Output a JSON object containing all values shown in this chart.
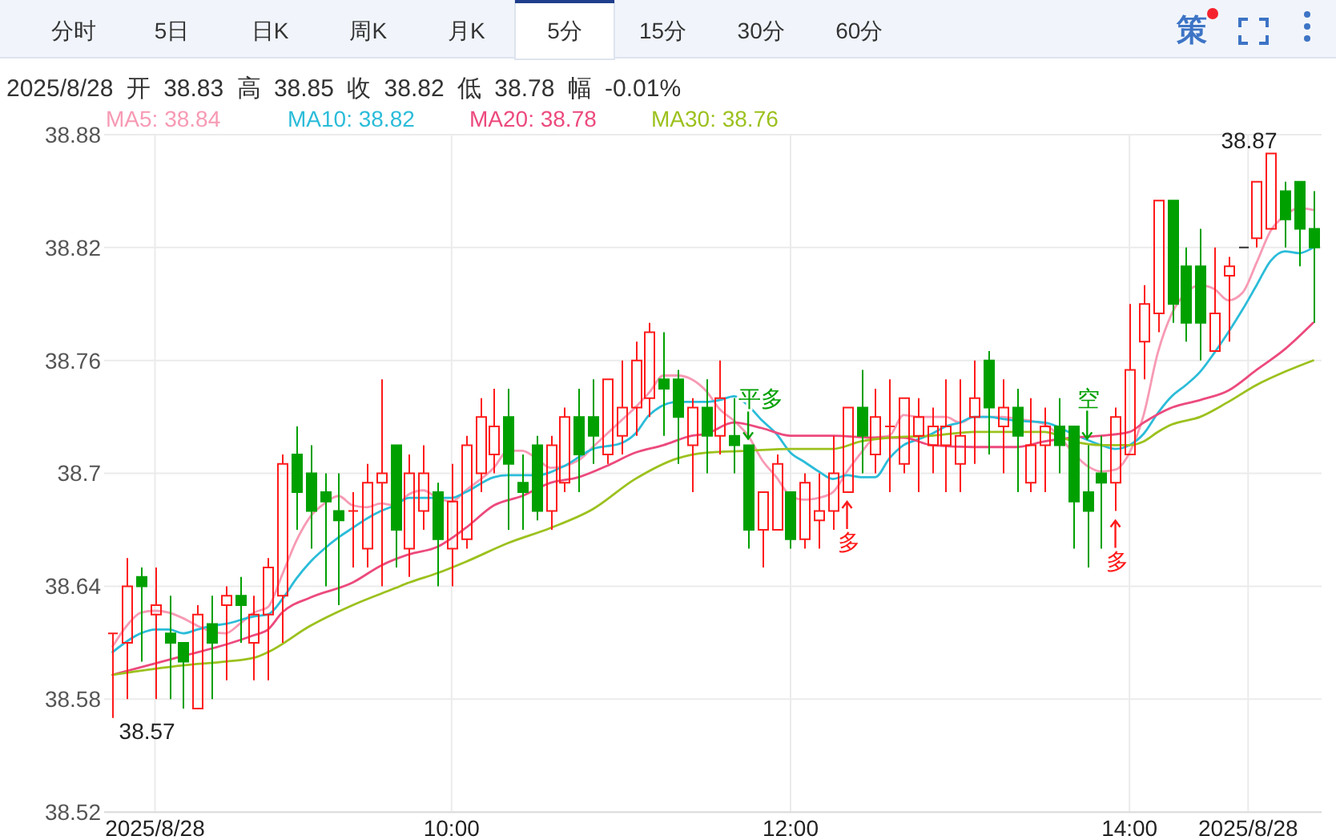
{
  "chart_data": {
    "type": "candlestick",
    "subtitle": "2025/8/28 开 38.83 高 38.85 收 38.82 低 38.78 幅 -0.01%",
    "x": [
      "2025-08-28T08:00",
      "2025-08-28T08:05",
      "2025-08-28T08:10",
      "2025-08-28T08:15",
      "2025-08-28T08:20",
      "2025-08-28T08:25",
      "2025-08-28T08:30",
      "2025-08-28T08:35",
      "2025-08-28T08:40",
      "2025-08-28T08:45",
      "2025-08-28T08:50",
      "2025-08-28T08:55",
      "2025-08-28T09:00",
      "2025-08-28T09:05",
      "2025-08-28T09:10",
      "2025-08-28T09:15",
      "2025-08-28T09:20",
      "2025-08-28T09:25",
      "2025-08-28T09:30",
      "2025-08-28T09:35",
      "2025-08-28T09:40",
      "2025-08-28T09:45",
      "2025-08-28T09:50",
      "2025-08-28T09:55",
      "2025-08-28T10:00",
      "2025-08-28T10:05",
      "2025-08-28T10:10",
      "2025-08-28T10:15",
      "2025-08-28T10:20",
      "2025-08-28T10:25",
      "2025-08-28T10:30",
      "2025-08-28T10:35",
      "2025-08-28T10:40",
      "2025-08-28T10:45",
      "2025-08-28T10:50",
      "2025-08-28T10:55",
      "2025-08-28T11:00",
      "2025-08-28T11:05",
      "2025-08-28T11:10",
      "2025-08-28T11:15",
      "2025-08-28T11:20",
      "2025-08-28T11:25",
      "2025-08-28T11:30",
      "2025-08-28T11:35",
      "2025-08-28T11:40",
      "2025-08-28T11:45",
      "2025-08-28T11:50",
      "2025-08-28T11:55",
      "2025-08-28T12:00",
      "2025-08-28T12:05",
      "2025-08-28T12:10",
      "2025-08-28T12:15",
      "2025-08-28T12:20",
      "2025-08-28T12:25",
      "2025-08-28T12:30",
      "2025-08-28T12:35",
      "2025-08-28T12:40",
      "2025-08-28T12:45",
      "2025-08-28T12:50",
      "2025-08-28T12:55",
      "2025-08-28T13:00",
      "2025-08-28T13:05",
      "2025-08-28T13:10",
      "2025-08-28T13:15",
      "2025-08-28T13:20",
      "2025-08-28T13:25",
      "2025-08-28T13:30",
      "2025-08-28T13:35",
      "2025-08-28T13:40",
      "2025-08-28T13:45",
      "2025-08-28T13:50",
      "2025-08-28T13:55",
      "2025-08-28T14:00",
      "2025-08-28T14:05",
      "2025-08-28T14:10",
      "2025-08-28T14:15",
      "2025-08-28T14:20",
      "2025-08-28T14:25",
      "2025-08-28T14:30",
      "2025-08-28T14:35",
      "2025-08-28T14:40",
      "2025-08-28T14:45",
      "2025-08-28T14:50",
      "2025-08-28T14:55",
      "2025-08-28T15:00",
      "2025-08-28T15:05"
    ],
    "ohlc": [
      [
        38.615,
        38.615,
        38.57,
        38.615
      ],
      [
        38.61,
        38.655,
        38.58,
        38.64
      ],
      [
        38.645,
        38.65,
        38.6,
        38.64
      ],
      [
        38.625,
        38.65,
        38.58,
        38.63
      ],
      [
        38.615,
        38.635,
        38.58,
        38.61
      ],
      [
        38.61,
        38.61,
        38.575,
        38.6
      ],
      [
        38.575,
        38.63,
        38.575,
        38.625
      ],
      [
        38.62,
        38.635,
        38.58,
        38.61
      ],
      [
        38.63,
        38.64,
        38.59,
        38.635
      ],
      [
        38.635,
        38.645,
        38.61,
        38.63
      ],
      [
        38.61,
        38.635,
        38.59,
        38.625
      ],
      [
        38.625,
        38.655,
        38.59,
        38.65
      ],
      [
        38.635,
        38.71,
        38.61,
        38.705
      ],
      [
        38.71,
        38.725,
        38.67,
        38.69
      ],
      [
        38.7,
        38.715,
        38.66,
        38.68
      ],
      [
        38.69,
        38.7,
        38.64,
        38.685
      ],
      [
        38.68,
        38.7,
        38.63,
        38.675
      ],
      [
        38.68,
        38.69,
        38.65,
        38.68
      ],
      [
        38.66,
        38.705,
        38.65,
        38.695
      ],
      [
        38.695,
        38.75,
        38.64,
        38.7
      ],
      [
        38.715,
        38.715,
        38.65,
        38.67
      ],
      [
        38.66,
        38.71,
        38.645,
        38.7
      ],
      [
        38.68,
        38.715,
        38.67,
        38.7
      ],
      [
        38.69,
        38.695,
        38.64,
        38.665
      ],
      [
        38.66,
        38.705,
        38.64,
        38.685
      ],
      [
        38.665,
        38.72,
        38.66,
        38.715
      ],
      [
        38.7,
        38.74,
        38.69,
        38.73
      ],
      [
        38.71,
        38.745,
        38.7,
        38.725
      ],
      [
        38.73,
        38.745,
        38.67,
        38.705
      ],
      [
        38.695,
        38.71,
        38.67,
        38.69
      ],
      [
        38.715,
        38.72,
        38.675,
        38.68
      ],
      [
        38.68,
        38.72,
        38.67,
        38.715
      ],
      [
        38.695,
        38.735,
        38.69,
        38.73
      ],
      [
        38.73,
        38.745,
        38.69,
        38.71
      ],
      [
        38.73,
        38.75,
        38.705,
        38.72
      ],
      [
        38.71,
        38.75,
        38.705,
        38.75
      ],
      [
        38.72,
        38.76,
        38.71,
        38.735
      ],
      [
        38.735,
        38.77,
        38.72,
        38.76
      ],
      [
        38.74,
        38.78,
        38.73,
        38.775
      ],
      [
        38.75,
        38.775,
        38.72,
        38.745
      ],
      [
        38.75,
        38.755,
        38.705,
        38.73
      ],
      [
        38.715,
        38.74,
        38.69,
        38.735
      ],
      [
        38.735,
        38.75,
        38.7,
        38.72
      ],
      [
        38.72,
        38.76,
        38.71,
        38.74
      ],
      [
        38.72,
        38.74,
        38.7,
        38.715
      ],
      [
        38.715,
        38.715,
        38.66,
        38.67
      ],
      [
        38.67,
        38.69,
        38.65,
        38.69
      ],
      [
        38.67,
        38.71,
        38.67,
        38.705
      ],
      [
        38.69,
        38.69,
        38.66,
        38.665
      ],
      [
        38.665,
        38.7,
        38.66,
        38.695
      ],
      [
        38.675,
        38.7,
        38.66,
        38.68
      ],
      [
        38.68,
        38.72,
        38.67,
        38.7
      ],
      [
        38.69,
        38.735,
        38.69,
        38.735
      ],
      [
        38.735,
        38.755,
        38.7,
        38.72
      ],
      [
        38.71,
        38.745,
        38.7,
        38.73
      ],
      [
        38.725,
        38.75,
        38.69,
        38.725
      ],
      [
        38.705,
        38.74,
        38.7,
        38.74
      ],
      [
        38.72,
        38.74,
        38.69,
        38.73
      ],
      [
        38.715,
        38.735,
        38.7,
        38.725
      ],
      [
        38.715,
        38.75,
        38.69,
        38.725
      ],
      [
        38.705,
        38.75,
        38.69,
        38.72
      ],
      [
        38.73,
        38.76,
        38.705,
        38.74
      ],
      [
        38.76,
        38.765,
        38.71,
        38.735
      ],
      [
        38.725,
        38.75,
        38.7,
        38.735
      ],
      [
        38.735,
        38.745,
        38.69,
        38.72
      ],
      [
        38.695,
        38.74,
        38.69,
        38.715
      ],
      [
        38.715,
        38.735,
        38.69,
        38.725
      ],
      [
        38.725,
        38.74,
        38.7,
        38.715
      ],
      [
        38.725,
        38.725,
        38.66,
        38.685
      ],
      [
        38.69,
        38.715,
        38.65,
        38.68
      ],
      [
        38.7,
        38.72,
        38.66,
        38.695
      ],
      [
        38.695,
        38.735,
        38.68,
        38.73
      ],
      [
        38.71,
        38.79,
        38.71,
        38.755
      ],
      [
        38.77,
        38.8,
        38.75,
        38.79
      ],
      [
        38.785,
        38.845,
        38.775,
        38.845
      ],
      [
        38.845,
        38.845,
        38.78,
        38.79
      ],
      [
        38.81,
        38.82,
        38.77,
        38.78
      ],
      [
        38.81,
        38.83,
        38.76,
        38.78
      ],
      [
        38.765,
        38.82,
        38.765,
        38.785
      ],
      [
        38.805,
        38.815,
        38.77,
        38.81
      ],
      [
        38.82,
        38.82,
        38.82,
        38.82
      ],
      [
        38.825,
        38.855,
        38.82,
        38.855
      ],
      [
        38.83,
        38.87,
        38.83,
        38.87
      ],
      [
        38.85,
        38.855,
        38.82,
        38.835
      ],
      [
        38.855,
        38.855,
        38.81,
        38.83
      ],
      [
        38.83,
        38.85,
        38.78,
        38.82
      ]
    ],
    "colors": [
      "#ff1a1a",
      "#ff1a1a",
      "#00a000",
      "#ff1a1a",
      "#00a000",
      "#00a000",
      "#ff1a1a",
      "#00a000",
      "#ff1a1a",
      "#00a000",
      "#ff1a1a",
      "#ff1a1a",
      "#ff1a1a",
      "#00a000",
      "#00a000",
      "#00a000",
      "#00a000",
      "#ff1a1a",
      "#ff1a1a",
      "#ff1a1a",
      "#00a000",
      "#ff1a1a",
      "#ff1a1a",
      "#00a000",
      "#ff1a1a",
      "#ff1a1a",
      "#ff1a1a",
      "#ff1a1a",
      "#00a000",
      "#00a000",
      "#00a000",
      "#ff1a1a",
      "#ff1a1a",
      "#00a000",
      "#00a000",
      "#ff1a1a",
      "#ff1a1a",
      "#ff1a1a",
      "#ff1a1a",
      "#00a000",
      "#00a000",
      "#ff1a1a",
      "#00a000",
      "#ff1a1a",
      "#00a000",
      "#00a000",
      "#ff1a1a",
      "#ff1a1a",
      "#00a000",
      "#ff1a1a",
      "#ff1a1a",
      "#ff1a1a",
      "#ff1a1a",
      "#00a000",
      "#ff1a1a",
      "#ff1a1a",
      "#ff1a1a",
      "#ff1a1a",
      "#ff1a1a",
      "#ff1a1a",
      "#ff1a1a",
      "#ff1a1a",
      "#00a000",
      "#ff1a1a",
      "#00a000",
      "#ff1a1a",
      "#ff1a1a",
      "#00a000",
      "#00a000",
      "#00a000",
      "#00a000",
      "#ff1a1a",
      "#ff1a1a",
      "#ff1a1a",
      "#ff1a1a",
      "#00a000",
      "#00a000",
      "#00a000",
      "#ff1a1a",
      "#ff1a1a",
      "#333333",
      "#ff1a1a",
      "#ff1a1a",
      "#00a000",
      "#00a000",
      "#00a000"
    ],
    "series": [
      {
        "type": "line",
        "name": "MA5: 38.84",
        "color": "#f79ab4",
        "x": [
          "2025-08-28T08:00",
          "2025-08-28T08:05",
          "2025-08-28T08:10",
          "2025-08-28T08:15",
          "2025-08-28T08:20",
          "2025-08-28T08:25",
          "2025-08-28T08:30",
          "2025-08-28T08:35",
          "2025-08-28T08:40",
          "2025-08-28T08:45",
          "2025-08-28T08:50",
          "2025-08-28T08:55",
          "2025-08-28T09:00",
          "2025-08-28T09:05",
          "2025-08-28T09:10",
          "2025-08-28T09:15",
          "2025-08-28T09:20",
          "2025-08-28T09:25",
          "2025-08-28T09:30",
          "2025-08-28T09:35",
          "2025-08-28T09:40",
          "2025-08-28T09:45",
          "2025-08-28T09:50",
          "2025-08-28T09:55",
          "2025-08-28T10:00",
          "2025-08-28T10:05",
          "2025-08-28T10:15",
          "2025-08-28T10:20",
          "2025-08-28T10:25",
          "2025-08-28T10:30",
          "2025-08-28T10:35",
          "2025-08-28T10:45",
          "2025-08-28T10:50",
          "2025-08-28T10:55",
          "2025-08-28T11:00",
          "2025-08-28T11:05",
          "2025-08-28T11:10",
          "2025-08-28T11:15",
          "2025-08-28T11:20",
          "2025-08-28T11:25",
          "2025-08-28T11:30",
          "2025-08-28T11:35",
          "2025-08-28T11:40",
          "2025-08-28T11:45",
          "2025-08-28T11:50",
          "2025-08-28T11:55",
          "2025-08-28T12:00",
          "2025-08-28T12:05",
          "2025-08-28T12:10",
          "2025-08-28T12:15",
          "2025-08-28T12:20",
          "2025-08-28T12:25",
          "2025-08-28T12:30",
          "2025-08-28T12:35",
          "2025-08-28T12:40",
          "2025-08-28T12:45",
          "2025-08-28T12:50",
          "2025-08-28T12:55",
          "2025-08-28T13:00",
          "2025-08-28T13:05",
          "2025-08-28T13:10",
          "2025-08-28T13:15",
          "2025-08-28T13:20",
          "2025-08-28T13:30",
          "2025-08-28T13:35",
          "2025-08-28T13:40",
          "2025-08-28T13:45",
          "2025-08-28T13:50",
          "2025-08-28T13:55",
          "2025-08-28T14:00",
          "2025-08-28T14:05",
          "2025-08-28T14:10",
          "2025-08-28T14:15",
          "2025-08-28T14:20",
          "2025-08-28T14:25",
          "2025-08-28T14:30",
          "2025-08-28T14:35",
          "2025-08-28T14:40",
          "2025-08-28T14:45",
          "2025-08-28T14:50",
          "2025-08-28T14:55",
          "2025-08-28T15:00",
          "2025-08-28T15:05"
        ],
        "values": [
          38.608,
          38.619,
          38.626,
          38.627,
          38.626,
          38.623,
          38.619,
          38.616,
          38.615,
          38.62,
          38.626,
          38.629,
          38.646,
          38.664,
          38.677,
          38.684,
          38.688,
          38.683,
          38.682,
          38.684,
          38.683,
          38.689,
          38.691,
          38.687,
          38.685,
          38.691,
          38.703,
          38.712,
          38.712,
          38.708,
          38.703,
          38.707,
          38.714,
          38.721,
          38.728,
          38.735,
          38.743,
          38.752,
          38.752,
          38.75,
          38.744,
          38.734,
          38.728,
          38.72,
          38.707,
          38.698,
          38.688,
          38.686,
          38.687,
          38.69,
          38.701,
          38.711,
          38.719,
          38.72,
          38.731,
          38.73,
          38.73,
          38.73,
          38.727,
          38.73,
          38.73,
          38.73,
          38.729,
          38.726,
          38.72,
          38.711,
          38.704,
          38.701,
          38.702,
          38.711,
          38.731,
          38.764,
          38.785,
          38.796,
          38.8,
          38.798,
          38.792,
          38.796,
          38.812,
          38.829,
          38.837,
          38.841,
          38.84
        ]
      },
      {
        "type": "line",
        "name": "MA10: 38.82",
        "color": "#2bbcd9",
        "x": [
          "2025-08-28T08:00",
          "2025-08-28T08:10",
          "2025-08-28T08:15",
          "2025-08-28T08:20",
          "2025-08-28T08:25",
          "2025-08-28T08:30",
          "2025-08-28T08:35",
          "2025-08-28T08:40",
          "2025-08-28T08:50",
          "2025-08-28T08:55",
          "2025-08-28T09:00",
          "2025-08-28T09:05",
          "2025-08-28T09:10",
          "2025-08-28T09:15",
          "2025-08-28T09:20",
          "2025-08-28T09:25",
          "2025-08-28T09:30",
          "2025-08-28T09:35",
          "2025-08-28T09:40",
          "2025-08-28T09:45",
          "2025-08-28T09:50",
          "2025-08-28T10:00",
          "2025-08-28T10:05",
          "2025-08-28T10:15",
          "2025-08-28T10:20",
          "2025-08-28T10:30",
          "2025-08-28T10:40",
          "2025-08-28T10:50",
          "2025-08-28T11:00",
          "2025-08-28T11:05",
          "2025-08-28T11:10",
          "2025-08-28T11:20",
          "2025-08-28T11:30",
          "2025-08-28T11:35",
          "2025-08-28T11:40",
          "2025-08-28T11:45",
          "2025-08-28T11:50",
          "2025-08-28T11:55",
          "2025-08-28T12:00",
          "2025-08-28T12:05",
          "2025-08-28T12:10",
          "2025-08-28T12:15",
          "2025-08-28T12:20",
          "2025-08-28T12:25",
          "2025-08-28T12:30",
          "2025-08-28T12:35",
          "2025-08-28T12:40",
          "2025-08-28T12:45",
          "2025-08-28T12:50",
          "2025-08-28T12:55",
          "2025-08-28T13:00",
          "2025-08-28T13:05",
          "2025-08-28T13:10",
          "2025-08-28T13:15",
          "2025-08-28T13:20",
          "2025-08-28T13:30",
          "2025-08-28T13:40",
          "2025-08-28T13:50",
          "2025-08-28T13:55",
          "2025-08-28T14:00",
          "2025-08-28T14:05",
          "2025-08-28T14:10",
          "2025-08-28T14:15",
          "2025-08-28T14:20",
          "2025-08-28T14:25",
          "2025-08-28T14:30",
          "2025-08-28T14:35",
          "2025-08-28T14:40",
          "2025-08-28T14:45",
          "2025-08-28T14:50",
          "2025-08-28T14:55",
          "2025-08-28T15:00",
          "2025-08-28T15:05"
        ],
        "values": [
          38.605,
          38.615,
          38.617,
          38.617,
          38.615,
          38.617,
          38.619,
          38.62,
          38.624,
          38.625,
          38.633,
          38.644,
          38.653,
          38.66,
          38.666,
          38.671,
          38.676,
          38.68,
          38.683,
          38.687,
          38.687,
          38.687,
          38.69,
          38.698,
          38.699,
          38.699,
          38.704,
          38.713,
          38.716,
          38.721,
          38.731,
          38.738,
          38.738,
          38.739,
          38.741,
          38.736,
          38.728,
          38.721,
          38.711,
          38.706,
          38.701,
          38.697,
          38.699,
          38.698,
          38.698,
          38.708,
          38.715,
          38.718,
          38.721,
          38.725,
          38.727,
          38.73,
          38.73,
          38.729,
          38.728,
          38.727,
          38.721,
          38.715,
          38.713,
          38.715,
          38.721,
          38.732,
          38.741,
          38.747,
          38.754,
          38.764,
          38.775,
          38.787,
          38.8,
          38.813,
          38.818,
          38.817,
          38.82
        ]
      },
      {
        "type": "line",
        "name": "MA20: 38.78",
        "color": "#ec4a7d",
        "x": [
          "2025-08-28T08:00",
          "2025-08-28T08:25",
          "2025-08-28T08:40",
          "2025-08-28T08:50",
          "2025-08-28T08:55",
          "2025-08-28T09:00",
          "2025-08-28T09:10",
          "2025-08-28T09:25",
          "2025-08-28T09:35",
          "2025-08-28T09:45",
          "2025-08-28T09:55",
          "2025-08-28T10:05",
          "2025-08-28T10:15",
          "2025-08-28T10:25",
          "2025-08-28T10:35",
          "2025-08-28T10:45",
          "2025-08-28T10:55",
          "2025-08-28T11:05",
          "2025-08-28T11:15",
          "2025-08-28T11:25",
          "2025-08-28T11:30",
          "2025-08-28T11:40",
          "2025-08-28T11:50",
          "2025-08-28T12:00",
          "2025-08-28T12:15",
          "2025-08-28T12:30",
          "2025-08-28T12:40",
          "2025-08-28T12:50",
          "2025-08-28T13:05",
          "2025-08-28T13:20",
          "2025-08-28T13:30",
          "2025-08-28T13:40",
          "2025-08-28T13:50",
          "2025-08-28T14:00",
          "2025-08-28T14:05",
          "2025-08-28T14:15",
          "2025-08-28T14:25",
          "2025-08-28T14:35",
          "2025-08-28T14:45",
          "2025-08-28T14:55",
          "2025-08-28T15:05"
        ],
        "values": [
          38.593,
          38.603,
          38.609,
          38.614,
          38.617,
          38.626,
          38.634,
          38.642,
          38.651,
          38.657,
          38.661,
          38.671,
          38.683,
          38.688,
          38.695,
          38.698,
          38.704,
          38.711,
          38.715,
          38.72,
          38.721,
          38.727,
          38.724,
          38.72,
          38.72,
          38.719,
          38.719,
          38.715,
          38.714,
          38.714,
          38.717,
          38.719,
          38.72,
          38.722,
          38.727,
          38.735,
          38.739,
          38.744,
          38.755,
          38.766,
          38.78
        ]
      },
      {
        "type": "line",
        "name": "MA30: 38.76",
        "color": "#9cc11e",
        "x": [
          "2025-08-28T08:00",
          "2025-08-28T08:25",
          "2025-08-28T08:40",
          "2025-08-28T08:50",
          "2025-08-28T08:55",
          "2025-08-28T09:10",
          "2025-08-28T09:25",
          "2025-08-28T09:40",
          "2025-08-28T09:45",
          "2025-08-28T09:55",
          "2025-08-28T10:05",
          "2025-08-28T10:20",
          "2025-08-28T10:35",
          "2025-08-28T10:50",
          "2025-08-28T11:05",
          "2025-08-28T11:20",
          "2025-08-28T11:30",
          "2025-08-28T11:45",
          "2025-08-28T12:00",
          "2025-08-28T12:15",
          "2025-08-28T12:25",
          "2025-08-28T12:35",
          "2025-08-28T12:50",
          "2025-08-28T13:05",
          "2025-08-28T13:20",
          "2025-08-28T13:30",
          "2025-08-28T13:40",
          "2025-08-28T13:50",
          "2025-08-28T14:00",
          "2025-08-28T14:05",
          "2025-08-28T14:10",
          "2025-08-28T14:15",
          "2025-08-28T14:25",
          "2025-08-28T14:35",
          "2025-08-28T14:45",
          "2025-08-28T14:55",
          "2025-08-28T15:05"
        ],
        "values": [
          38.593,
          38.598,
          38.6,
          38.602,
          38.605,
          38.619,
          38.63,
          38.639,
          38.642,
          38.647,
          38.653,
          38.663,
          38.671,
          38.681,
          38.697,
          38.708,
          38.711,
          38.712,
          38.713,
          38.713,
          38.717,
          38.719,
          38.72,
          38.722,
          38.722,
          38.722,
          38.717,
          38.715,
          38.715,
          38.717,
          38.722,
          38.726,
          38.73,
          38.738,
          38.747,
          38.754,
          38.76
        ]
      }
    ],
    "xlim": [
      "2025-08-28T07:57",
      "2025-08-28T15:08"
    ],
    "xticks": [
      {
        "value": "2025-08-28T08:15",
        "label": "2025/8/28"
      },
      {
        "value": "2025-08-28T10:00",
        "label": "10:00"
      },
      {
        "value": "2025-08-28T12:00",
        "label": "12:00"
      },
      {
        "value": "2025-08-28T14:00",
        "label": "14:00"
      },
      {
        "value": "2025-08-28T14:42",
        "label": "2025/8/28"
      }
    ],
    "ylim": [
      38.52,
      38.88
    ],
    "yticks": [
      38.52,
      38.58,
      38.64,
      38.7,
      38.76,
      38.82,
      38.88
    ],
    "grid": true,
    "legend": "top left",
    "annotations": [
      "分时",
      "5日",
      "日K",
      "周K",
      "月K",
      "5分",
      "15分",
      "30分",
      "60分",
      "策",
      {
        "text": "38.87",
        "x": "2025-08-28T14:50",
        "y": 38.87
      },
      {
        "text": "38.57",
        "x": "2025-08-28T08:00",
        "y": 38.57
      },
      {
        "text": "平多",
        "x": "2025-08-28T11:45",
        "y": 38.715
      },
      {
        "text": "多",
        "x": "2025-08-28T12:20",
        "y": 38.69
      },
      {
        "text": "空",
        "x": "2025-08-28T13:45",
        "y": 38.715
      },
      {
        "text": "多",
        "x": "2025-08-28T13:55",
        "y": 38.68
      }
    ]
  }
}
